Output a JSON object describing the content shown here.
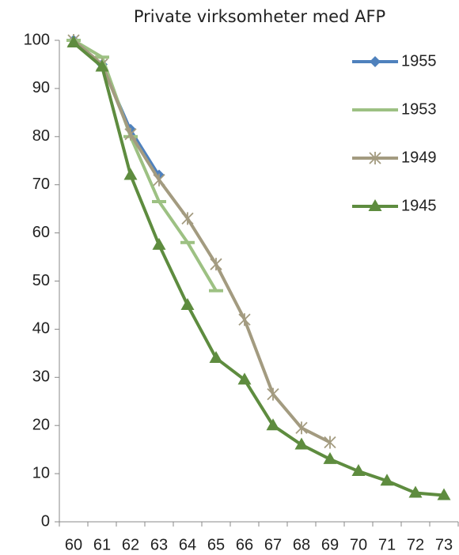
{
  "chart_data": {
    "type": "line",
    "title": "Private virksomheter med AFP",
    "categories": [
      "60",
      "61",
      "62",
      "63",
      "64",
      "65",
      "66",
      "67",
      "68",
      "69",
      "70",
      "71",
      "72",
      "73"
    ],
    "series": [
      {
        "name": "1955",
        "color": "#4f81bd",
        "marker": "diamond",
        "values": [
          100,
          95,
          81.5,
          72,
          null,
          null,
          null,
          null,
          null,
          null,
          null,
          null,
          null,
          null
        ]
      },
      {
        "name": "1953",
        "color": "#9dc183",
        "marker": "dash",
        "values": [
          100,
          96.5,
          80,
          66.5,
          58,
          48,
          null,
          null,
          null,
          null,
          null,
          null,
          null,
          null
        ]
      },
      {
        "name": "1949",
        "color": "#a39b80",
        "marker": "star",
        "values": [
          100,
          95,
          80.5,
          71,
          63,
          53.5,
          42,
          26.5,
          19.5,
          16.5,
          null,
          null,
          null,
          null
        ]
      },
      {
        "name": "1945",
        "color": "#5e8c3f",
        "marker": "triangle",
        "values": [
          99.5,
          94.5,
          72,
          57.5,
          45,
          34,
          29.5,
          20,
          16,
          13,
          10.5,
          8.5,
          6,
          5.5
        ]
      }
    ],
    "ylim": [
      0,
      100
    ],
    "yticks": [
      0,
      10,
      20,
      30,
      40,
      50,
      60,
      70,
      80,
      90,
      100
    ],
    "grid": false,
    "legend": "top-right"
  }
}
